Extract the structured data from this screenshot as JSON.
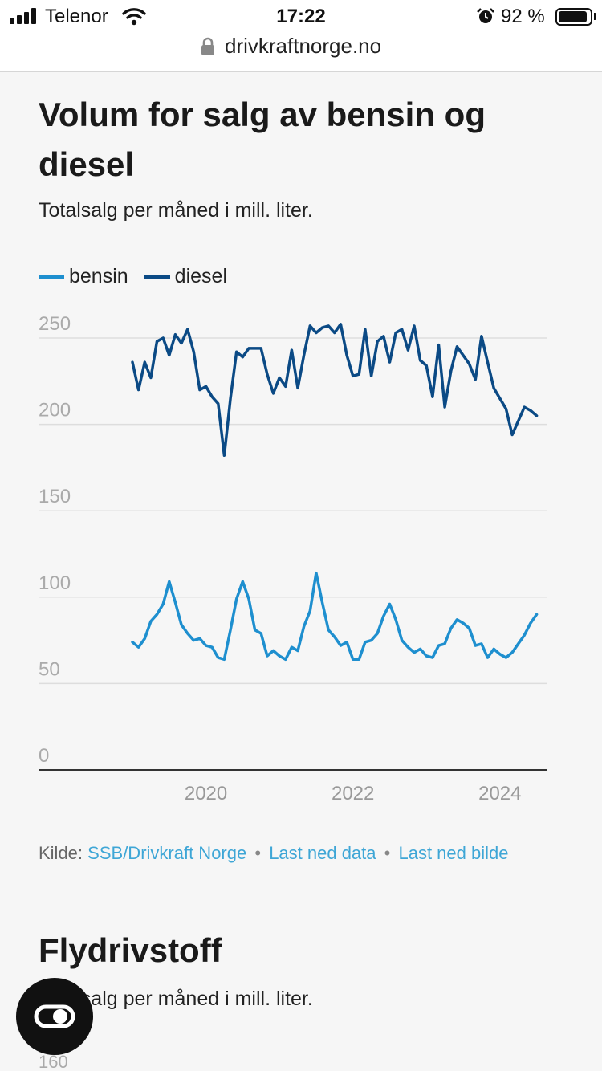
{
  "status": {
    "carrier": "Telenor",
    "time": "17:22",
    "battery": "92 %"
  },
  "browser": {
    "url": "drivkraftnorge.no"
  },
  "article": {
    "title": "Volum for salg av bensin og diesel",
    "subtitle": "Totalsalg per måned i mill. liter.",
    "source_label": "Kilde:",
    "source_link": "SSB/Drivkraft Norge",
    "download_data": "Last ned data",
    "download_image": "Last ned bilde"
  },
  "next_section": {
    "title": "Flydrivstoff",
    "subtitle": "Totalsalg per måned i mill. liter.",
    "first_tick": "160"
  },
  "chart_data": {
    "type": "line",
    "title": "Volum for salg av bensin og diesel",
    "subtitle": "Totalsalg per måned i mill. liter.",
    "ylim": [
      0,
      250
    ],
    "yticks": [
      0,
      50,
      100,
      150,
      200,
      250
    ],
    "xticks": [
      "2020",
      "2022",
      "2024"
    ],
    "x_start": "2019-01",
    "x_end": "2024-07",
    "grid": true,
    "legend_position": "top-left",
    "series": [
      {
        "name": "bensin",
        "color": "#1e8fcf",
        "values": [
          74,
          71,
          76,
          86,
          90,
          96,
          109,
          97,
          84,
          79,
          75,
          76,
          72,
          71,
          65,
          64,
          81,
          99,
          109,
          99,
          81,
          79,
          66,
          69,
          66,
          64,
          71,
          69,
          83,
          92,
          114,
          97,
          81,
          77,
          72,
          74,
          64,
          64,
          74,
          75,
          79,
          89,
          96,
          87,
          75,
          71,
          68,
          70,
          66,
          65,
          72,
          73,
          82,
          87,
          85,
          82,
          72,
          73,
          65,
          70,
          67,
          65,
          68,
          73,
          78,
          85,
          90
        ]
      },
      {
        "name": "diesel",
        "color": "#0b4a85",
        "values": [
          236,
          220,
          236,
          227,
          248,
          250,
          240,
          252,
          247,
          255,
          242,
          220,
          222,
          216,
          212,
          182,
          215,
          242,
          239,
          244,
          244,
          244,
          229,
          218,
          227,
          222,
          243,
          221,
          240,
          257,
          253,
          256,
          257,
          253,
          258,
          240,
          228,
          229,
          255,
          228,
          248,
          251,
          236,
          253,
          255,
          243,
          257,
          237,
          234,
          216,
          246,
          210,
          231,
          245,
          240,
          235,
          226,
          251,
          236,
          221,
          215,
          209,
          194,
          202,
          210,
          208,
          205
        ]
      }
    ]
  }
}
